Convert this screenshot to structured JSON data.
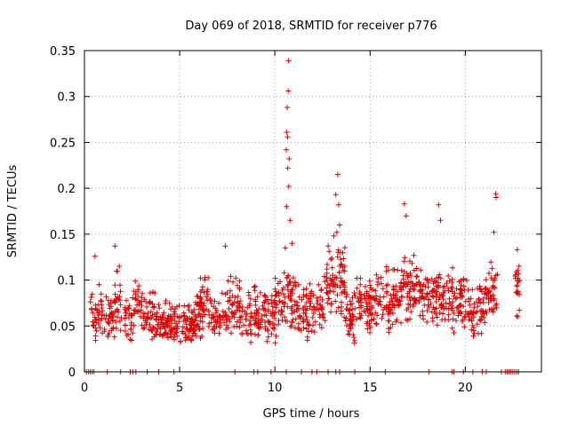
{
  "chart_data": {
    "type": "scatter",
    "title": "Day 069 of 2018, SRMTID for receiver p776",
    "xlabel": "GPS time / hours",
    "ylabel": "SRMTID / TECUs",
    "xlim": [
      0,
      24
    ],
    "ylim": [
      0,
      0.35
    ],
    "xticks": [
      0,
      5,
      10,
      15,
      20
    ],
    "yticks": [
      0,
      0.05,
      0.1,
      0.15,
      0.2,
      0.25,
      0.3,
      0.35
    ],
    "ytick_labels": [
      "0",
      "0.05",
      "0.1",
      "0.15",
      "0.2",
      "0.25",
      "0.3",
      "0.35"
    ],
    "grid": true,
    "marker": "+",
    "color": "#e00000",
    "seed": 69,
    "segments": [
      {
        "x0": 0.3,
        "x1": 0.95,
        "n": 40,
        "lo": 0.03,
        "hi": 0.1
      },
      {
        "x0": 1.0,
        "x1": 1.5,
        "n": 30,
        "lo": 0.03,
        "hi": 0.09
      },
      {
        "x0": 1.5,
        "x1": 1.95,
        "n": 30,
        "lo": 0.03,
        "hi": 0.12
      },
      {
        "x0": 2.0,
        "x1": 2.6,
        "n": 30,
        "lo": 0.03,
        "hi": 0.09
      },
      {
        "x0": 2.6,
        "x1": 3.0,
        "n": 22,
        "lo": 0.05,
        "hi": 0.1
      },
      {
        "x0": 3.0,
        "x1": 3.7,
        "n": 45,
        "lo": 0.03,
        "hi": 0.09
      },
      {
        "x0": 3.7,
        "x1": 4.3,
        "n": 45,
        "lo": 0.03,
        "hi": 0.08
      },
      {
        "x0": 4.3,
        "x1": 5.0,
        "n": 55,
        "lo": 0.03,
        "hi": 0.08
      },
      {
        "x0": 5.0,
        "x1": 5.9,
        "n": 70,
        "lo": 0.025,
        "hi": 0.08
      },
      {
        "x0": 5.9,
        "x1": 6.5,
        "n": 50,
        "lo": 0.03,
        "hi": 0.11
      },
      {
        "x0": 6.5,
        "x1": 7.5,
        "n": 55,
        "lo": 0.035,
        "hi": 0.09
      },
      {
        "x0": 7.5,
        "x1": 8.3,
        "n": 55,
        "lo": 0.035,
        "hi": 0.11
      },
      {
        "x0": 8.3,
        "x1": 9.2,
        "n": 55,
        "lo": 0.03,
        "hi": 0.1
      },
      {
        "x0": 9.2,
        "x1": 10.0,
        "n": 50,
        "lo": 0.03,
        "hi": 0.09
      },
      {
        "x0": 10.0,
        "x1": 10.5,
        "n": 35,
        "lo": 0.03,
        "hi": 0.12
      },
      {
        "x0": 10.5,
        "x1": 11.1,
        "n": 45,
        "lo": 0.03,
        "hi": 0.12
      },
      {
        "x0": 11.1,
        "x1": 11.8,
        "n": 45,
        "lo": 0.03,
        "hi": 0.1
      },
      {
        "x0": 11.8,
        "x1": 12.6,
        "n": 45,
        "lo": 0.04,
        "hi": 0.1
      },
      {
        "x0": 12.6,
        "x1": 13.1,
        "n": 35,
        "lo": 0.05,
        "hi": 0.14
      },
      {
        "x0": 13.1,
        "x1": 13.7,
        "n": 45,
        "lo": 0.05,
        "hi": 0.15
      },
      {
        "x0": 13.7,
        "x1": 14.3,
        "n": 45,
        "lo": 0.03,
        "hi": 0.09
      },
      {
        "x0": 14.3,
        "x1": 15.3,
        "n": 70,
        "lo": 0.04,
        "hi": 0.11
      },
      {
        "x0": 15.3,
        "x1": 16.5,
        "n": 80,
        "lo": 0.04,
        "hi": 0.12
      },
      {
        "x0": 16.5,
        "x1": 17.5,
        "n": 70,
        "lo": 0.05,
        "hi": 0.13
      },
      {
        "x0": 17.5,
        "x1": 18.5,
        "n": 70,
        "lo": 0.05,
        "hi": 0.12
      },
      {
        "x0": 18.5,
        "x1": 19.5,
        "n": 65,
        "lo": 0.04,
        "hi": 0.12
      },
      {
        "x0": 19.5,
        "x1": 20.2,
        "n": 45,
        "lo": 0.04,
        "hi": 0.11
      },
      {
        "x0": 20.2,
        "x1": 21.0,
        "n": 50,
        "lo": 0.03,
        "hi": 0.1
      },
      {
        "x0": 21.0,
        "x1": 21.7,
        "n": 45,
        "lo": 0.04,
        "hi": 0.12
      },
      {
        "x0": 22.6,
        "x1": 22.9,
        "n": 20,
        "lo": 0.06,
        "hi": 0.14
      }
    ],
    "highlights": [
      [
        10.72,
        0.339
      ],
      [
        10.7,
        0.306
      ],
      [
        10.65,
        0.288
      ],
      [
        10.62,
        0.261
      ],
      [
        10.67,
        0.256
      ],
      [
        10.6,
        0.242
      ],
      [
        10.75,
        0.232
      ],
      [
        10.68,
        0.222
      ],
      [
        10.73,
        0.202
      ],
      [
        10.62,
        0.18
      ],
      [
        10.8,
        0.165
      ],
      [
        10.9,
        0.14
      ],
      [
        10.55,
        0.135
      ],
      [
        13.3,
        0.215
      ],
      [
        13.2,
        0.193
      ],
      [
        13.35,
        0.182
      ],
      [
        13.4,
        0.16
      ],
      [
        13.25,
        0.152
      ],
      [
        13.1,
        0.148
      ],
      [
        21.6,
        0.194
      ],
      [
        21.62,
        0.19
      ],
      [
        21.5,
        0.152
      ],
      [
        16.8,
        0.183
      ],
      [
        16.9,
        0.17
      ],
      [
        18.6,
        0.182
      ],
      [
        18.7,
        0.165
      ],
      [
        1.6,
        0.137
      ],
      [
        7.4,
        0.137
      ],
      [
        0.55,
        0.126
      ],
      [
        12.8,
        0.137
      ],
      [
        22.7,
        0.061
      ],
      [
        22.75,
        0.06
      ]
    ],
    "zeros": [
      0.1,
      0.2,
      0.3,
      0.4,
      0.5,
      1.2,
      1.9,
      2.4,
      2.55,
      2.7,
      3.3,
      3.9,
      4.7,
      7.9,
      8.9,
      9.1,
      9.8,
      10.6,
      11.4,
      11.95,
      12.2,
      12.8,
      13.2,
      13.4,
      14.2,
      15.8,
      18.1,
      19.3,
      19.4,
      19.9,
      20.4,
      20.9,
      21.1,
      21.9,
      22.1,
      22.2,
      22.3,
      22.4,
      22.5,
      22.6,
      22.7,
      22.8
    ]
  }
}
